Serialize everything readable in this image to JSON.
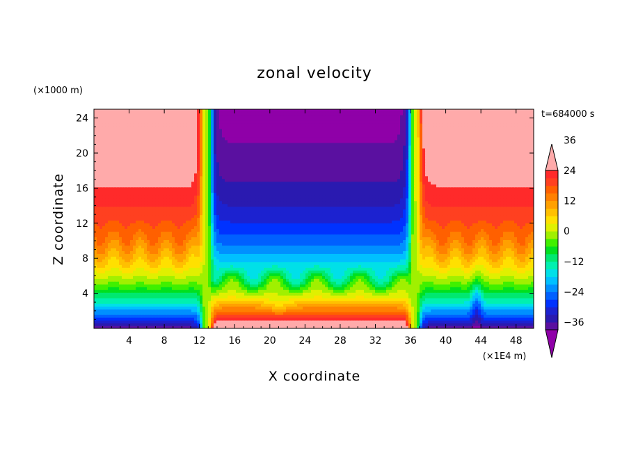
{
  "chart_data": {
    "type": "heatmap",
    "title": "zonal velocity",
    "xlabel": "X coordinate",
    "ylabel": "Z coordinate",
    "x_unit": "(×1E4 m)",
    "y_unit": "(×1000 m)",
    "time_label": "t=684000 s",
    "xlim": [
      0,
      50
    ],
    "ylim": [
      0,
      25
    ],
    "x_ticks": [
      4,
      8,
      12,
      16,
      20,
      24,
      28,
      32,
      36,
      40,
      44,
      48
    ],
    "y_ticks": [
      4,
      8,
      12,
      16,
      20,
      24
    ],
    "colorbar": {
      "levels": [
        -42,
        -39,
        -36,
        -33,
        -30,
        -27,
        -24,
        -21,
        -18,
        -15,
        -12,
        -9,
        -6,
        -3,
        0,
        3,
        6,
        9,
        12,
        15,
        18,
        21,
        24,
        27,
        30,
        33,
        36,
        39,
        42
      ],
      "colors": [
        "#8f00a8",
        "#5a10a0",
        "#2a1ab0",
        "#1c22d0",
        "#0032ff",
        "#0060ff",
        "#0090ff",
        "#00c0ff",
        "#00e0e8",
        "#00f0b0",
        "#00e870",
        "#00e020",
        "#40f000",
        "#a0f000",
        "#e0f000",
        "#ffe000",
        "#ffc000",
        "#ffa000",
        "#ff8000",
        "#ff6000",
        "#ff4020",
        "#ff2a2a",
        "#ffaaaa"
      ],
      "tick_labels": [
        "36",
        "24",
        "12",
        "0",
        "−12",
        "−24",
        "−36"
      ],
      "tick_values": [
        36,
        24,
        12,
        0,
        -12,
        -24,
        -36
      ],
      "extend": "both"
    },
    "field_description_points": [
      {
        "x": 4,
        "z": 22,
        "u": 33
      },
      {
        "x": 9.5,
        "z": 21,
        "u": 40
      },
      {
        "x": 12.7,
        "z": 12,
        "u": 0
      },
      {
        "x": 18,
        "z": 20,
        "u": -30
      },
      {
        "x": 28,
        "z": 20,
        "u": -40
      },
      {
        "x": 28,
        "z": 6,
        "u": 0
      },
      {
        "x": 28,
        "z": 1,
        "u": 33
      },
      {
        "x": 36.5,
        "z": 12,
        "u": 0
      },
      {
        "x": 40,
        "z": 22,
        "u": 33
      },
      {
        "x": 42,
        "z": 23,
        "u": 40
      },
      {
        "x": 6,
        "z": 1,
        "u": -36
      },
      {
        "x": 45,
        "z": 1,
        "u": -36
      }
    ]
  }
}
